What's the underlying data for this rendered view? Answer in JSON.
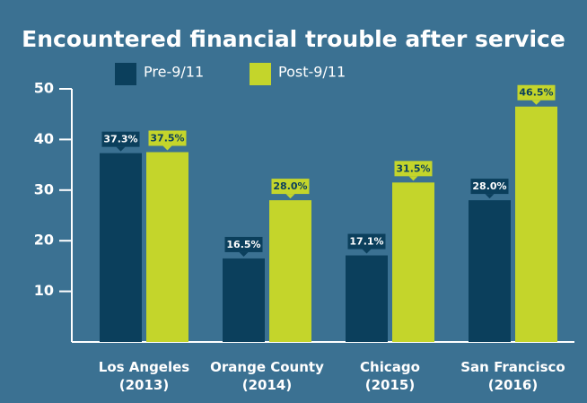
{
  "chart_data": {
    "type": "bar",
    "title": "Encountered financial trouble after service",
    "categories": [
      [
        "Los Angeles",
        "(2013)"
      ],
      [
        "Orange County",
        "(2014)"
      ],
      [
        "Chicago",
        "(2015)"
      ],
      [
        "San Francisco",
        "(2016)"
      ]
    ],
    "series": [
      {
        "name": "Pre-9/11",
        "color": "#0b3f5c",
        "values": [
          37.3,
          16.5,
          17.1,
          28.0
        ],
        "value_labels": [
          "37.3%",
          "16.5%",
          "17.1%",
          "28.0%"
        ]
      },
      {
        "name": "Post-9/11",
        "color": "#c4d52b",
        "values": [
          37.5,
          28.0,
          31.5,
          46.5
        ],
        "value_labels": [
          "37.5%",
          "28.0%",
          "31.5%",
          "46.5%"
        ]
      }
    ],
    "ylim": [
      0,
      50
    ],
    "yticks": [
      10,
      20,
      30,
      40,
      50
    ]
  }
}
